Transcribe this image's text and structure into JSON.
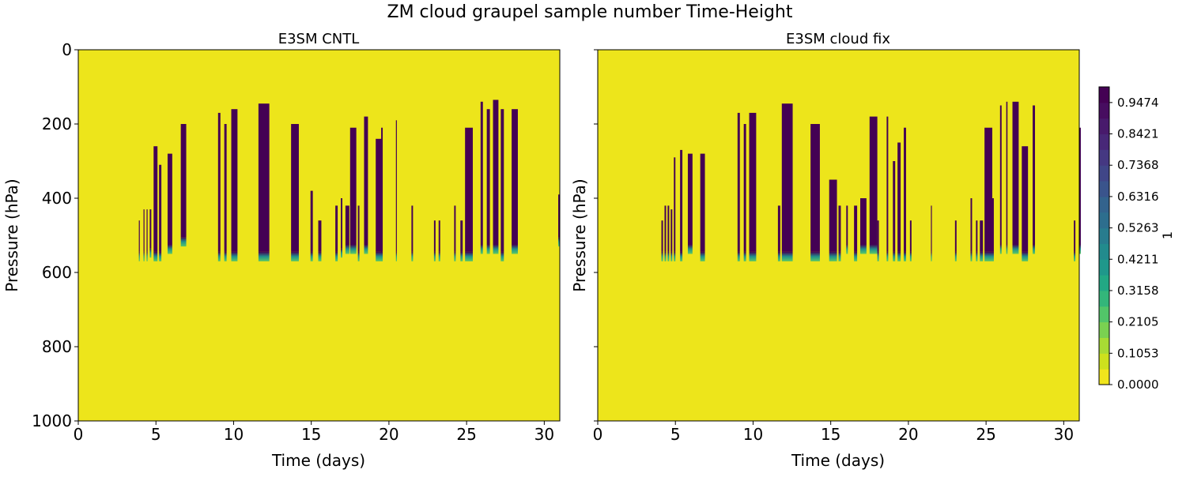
{
  "title": "ZM cloud graupel sample number Time-Height",
  "colorbar": {
    "label": "1",
    "ticks": [
      "0.0000",
      "0.1053",
      "0.2105",
      "0.3158",
      "0.4211",
      "0.5263",
      "0.6316",
      "0.7368",
      "0.8421",
      "0.9474"
    ],
    "colors": [
      "#f0e51d",
      "#cde11d",
      "#a8db34",
      "#7ad151",
      "#52c569",
      "#33b67a",
      "#22a884",
      "#1f988b",
      "#228b8d",
      "#287c8e",
      "#2d6e8e",
      "#33638d",
      "#3a548c",
      "#404688",
      "#453882",
      "#482878",
      "#481a6c",
      "#470d60",
      "#440154"
    ]
  },
  "chart_data": [
    {
      "type": "heatmap",
      "title": "E3SM CNTL",
      "xlabel": "Time (days)",
      "ylabel": "Pressure (hPa)",
      "xlim": [
        0,
        31
      ],
      "ylim": [
        1000,
        0
      ],
      "xticks": [
        "0",
        "5",
        "10",
        "15",
        "20",
        "25",
        "30"
      ],
      "yticks": [
        "0",
        "200",
        "400",
        "600",
        "800",
        "1000"
      ],
      "background_value": 0.0,
      "events": [
        [
          3.9,
          0.05,
          460,
          570
        ],
        [
          4.2,
          0.05,
          430,
          570
        ],
        [
          4.4,
          0.05,
          430,
          570
        ],
        [
          4.6,
          0.1,
          430,
          560
        ],
        [
          4.85,
          0.25,
          260,
          570
        ],
        [
          5.2,
          0.15,
          310,
          570
        ],
        [
          5.75,
          0.3,
          280,
          550
        ],
        [
          6.6,
          0.35,
          200,
          530
        ],
        [
          9.0,
          0.15,
          170,
          570
        ],
        [
          9.4,
          0.15,
          200,
          570
        ],
        [
          9.85,
          0.4,
          160,
          570
        ],
        [
          11.6,
          0.7,
          145,
          570
        ],
        [
          13.7,
          0.5,
          200,
          570
        ],
        [
          14.95,
          0.15,
          380,
          570
        ],
        [
          15.45,
          0.2,
          460,
          570
        ],
        [
          16.55,
          0.15,
          420,
          570
        ],
        [
          16.9,
          0.1,
          400,
          560
        ],
        [
          17.2,
          0.25,
          420,
          550
        ],
        [
          17.5,
          0.4,
          210,
          550
        ],
        [
          18.0,
          0.1,
          420,
          570
        ],
        [
          18.4,
          0.25,
          180,
          550
        ],
        [
          19.15,
          0.4,
          240,
          570
        ],
        [
          19.5,
          0.1,
          210,
          570
        ],
        [
          20.45,
          0.06,
          190,
          570
        ],
        [
          21.45,
          0.1,
          420,
          570
        ],
        [
          22.9,
          0.1,
          460,
          570
        ],
        [
          23.2,
          0.1,
          460,
          570
        ],
        [
          24.2,
          0.1,
          420,
          570
        ],
        [
          24.6,
          0.15,
          460,
          570
        ],
        [
          24.9,
          0.5,
          210,
          570
        ],
        [
          25.9,
          0.15,
          140,
          550
        ],
        [
          26.3,
          0.2,
          160,
          550
        ],
        [
          26.7,
          0.35,
          135,
          550
        ],
        [
          27.2,
          0.2,
          160,
          570
        ],
        [
          27.9,
          0.4,
          160,
          550
        ],
        [
          30.9,
          0.1,
          390,
          530
        ]
      ]
    },
    {
      "type": "heatmap",
      "title": "E3SM cloud fix",
      "xlabel": "Time (days)",
      "ylabel": "Pressure (hPa)",
      "xlim": [
        0,
        31
      ],
      "ylim": [
        1000,
        0
      ],
      "xticks": [
        "0",
        "5",
        "10",
        "15",
        "20",
        "25",
        "30"
      ],
      "yticks": [
        "0",
        "200",
        "400",
        "600",
        "800",
        "1000"
      ],
      "background_value": 0.0,
      "events": [
        [
          4.1,
          0.1,
          460,
          570
        ],
        [
          4.3,
          0.1,
          420,
          570
        ],
        [
          4.5,
          0.1,
          420,
          570
        ],
        [
          4.7,
          0.1,
          430,
          570
        ],
        [
          4.9,
          0.1,
          290,
          570
        ],
        [
          5.3,
          0.15,
          270,
          570
        ],
        [
          5.8,
          0.3,
          280,
          550
        ],
        [
          6.6,
          0.3,
          280,
          570
        ],
        [
          9.0,
          0.15,
          170,
          570
        ],
        [
          9.4,
          0.15,
          200,
          570
        ],
        [
          9.75,
          0.45,
          170,
          570
        ],
        [
          11.6,
          0.15,
          420,
          570
        ],
        [
          11.85,
          0.7,
          145,
          570
        ],
        [
          13.7,
          0.6,
          200,
          570
        ],
        [
          14.9,
          0.5,
          350,
          570
        ],
        [
          15.5,
          0.15,
          420,
          570
        ],
        [
          16.0,
          0.1,
          420,
          550
        ],
        [
          16.5,
          0.2,
          420,
          570
        ],
        [
          16.9,
          0.4,
          400,
          550
        ],
        [
          17.5,
          0.5,
          180,
          550
        ],
        [
          18.0,
          0.1,
          460,
          570
        ],
        [
          18.6,
          0.1,
          180,
          570
        ],
        [
          19.0,
          0.15,
          300,
          570
        ],
        [
          19.3,
          0.2,
          250,
          570
        ],
        [
          19.7,
          0.15,
          210,
          570
        ],
        [
          20.1,
          0.1,
          460,
          570
        ],
        [
          21.45,
          0.05,
          420,
          570
        ],
        [
          23.0,
          0.1,
          460,
          570
        ],
        [
          24.0,
          0.1,
          400,
          570
        ],
        [
          24.35,
          0.1,
          460,
          570
        ],
        [
          24.6,
          0.2,
          460,
          570
        ],
        [
          24.9,
          0.5,
          210,
          570
        ],
        [
          25.4,
          0.1,
          400,
          570
        ],
        [
          25.9,
          0.1,
          150,
          550
        ],
        [
          26.3,
          0.08,
          140,
          550
        ],
        [
          26.7,
          0.4,
          140,
          550
        ],
        [
          27.3,
          0.4,
          260,
          570
        ],
        [
          28.0,
          0.15,
          150,
          550
        ],
        [
          30.65,
          0.1,
          460,
          570
        ],
        [
          31.0,
          0.1,
          210,
          550
        ]
      ]
    }
  ]
}
